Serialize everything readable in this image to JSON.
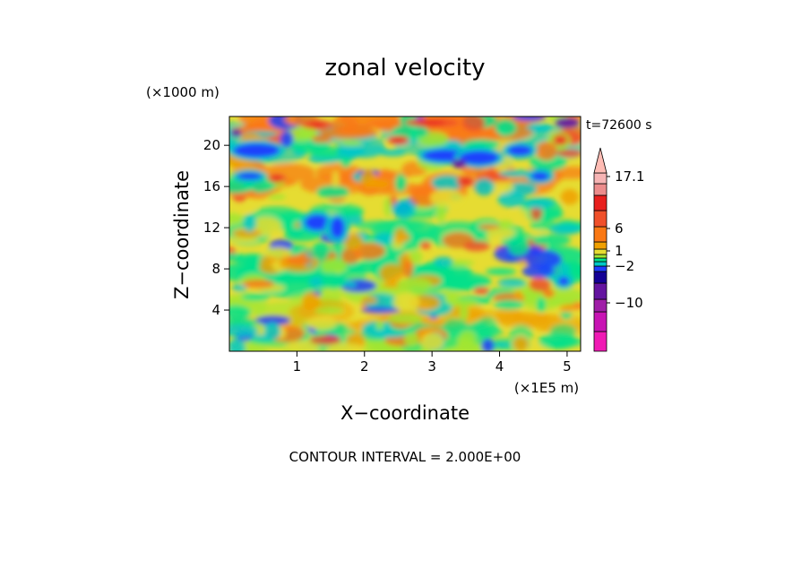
{
  "chart_data": {
    "type": "heatmap",
    "title": "zonal velocity",
    "time_label": "t=72600 s",
    "xlabel": "X−coordinate",
    "ylabel": "Z−coordinate",
    "x_scale_label": "(×1E5 m)",
    "y_scale_label": "(×1000 m)",
    "xlim": [
      0,
      5.2
    ],
    "ylim": [
      0,
      22.8
    ],
    "x_ticks": [
      1,
      2,
      3,
      4,
      5
    ],
    "x_tick_labels": [
      "1",
      "2",
      "3",
      "4",
      "5"
    ],
    "y_ticks": [
      4,
      8,
      12,
      16,
      20
    ],
    "y_tick_labels": [
      "4",
      "8",
      "12",
      "16",
      "20"
    ],
    "footer": "CONTOUR INTERVAL = 2.000E+00",
    "colorbar": {
      "levels": [
        {
          "color": "#f01ab4"
        },
        {
          "color": "#c814b4"
        },
        {
          "color": "#a01ea8"
        },
        {
          "color": "#6414a0"
        },
        {
          "color": "#140096"
        },
        {
          "color": "#1e3cff"
        },
        {
          "color": "#00c8c8"
        },
        {
          "color": "#00e18c"
        },
        {
          "color": "#a0e632"
        },
        {
          "color": "#e6dc32"
        },
        {
          "color": "#f0a000"
        },
        {
          "color": "#fa7814"
        },
        {
          "color": "#f0502a"
        },
        {
          "color": "#e8201e"
        },
        {
          "color": "#ec8c8c"
        },
        {
          "color": "#f6b4b4"
        },
        {
          "color": "#ffbcb4"
        }
      ],
      "labels": [
        {
          "text": "17.1",
          "value": 17.1
        },
        {
          "text": "6",
          "value": 6
        },
        {
          "text": "1",
          "value": 1
        },
        {
          "text": "−2",
          "value": -2
        },
        {
          "text": "−10",
          "value": -10
        }
      ]
    }
  }
}
